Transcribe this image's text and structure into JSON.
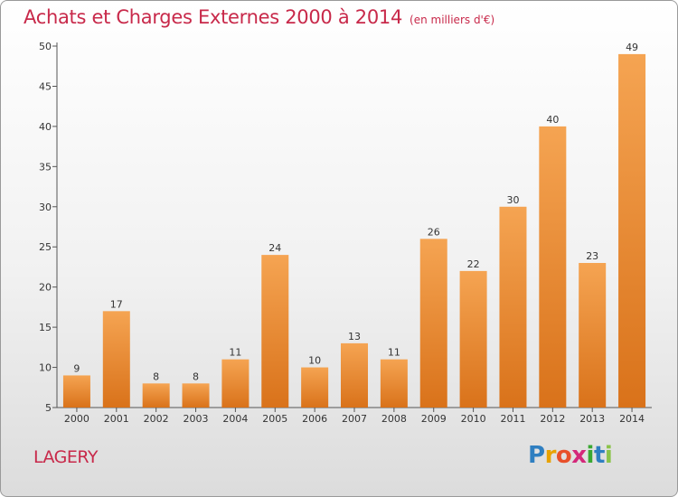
{
  "header": {
    "title": "Achats et Charges Externes 2000 à 2014",
    "unit": "(en milliers d'€)"
  },
  "footer": {
    "place": "LAGERY",
    "logo_letters": [
      "P",
      "r",
      "o",
      "x",
      "i",
      "t",
      "i"
    ],
    "logo_colors": [
      "#2f7fc1",
      "#e8a200",
      "#e8502a",
      "#d4287a",
      "#3aa832",
      "#2f7fc1",
      "#8bc34a"
    ]
  },
  "colors": {
    "title": "#c8294a",
    "bar_top": "#f5a452",
    "bar_bottom": "#d9721a",
    "axis": "#555555"
  },
  "chart_data": {
    "type": "bar",
    "title": "Achats et Charges Externes 2000 à 2014",
    "categories": [
      "2000",
      "2001",
      "2002",
      "2003",
      "2004",
      "2005",
      "2006",
      "2007",
      "2008",
      "2009",
      "2010",
      "2011",
      "2012",
      "2013",
      "2014"
    ],
    "values": [
      9,
      17,
      8,
      8,
      11,
      24,
      10,
      13,
      11,
      26,
      22,
      30,
      40,
      23,
      49
    ],
    "ylim": [
      5,
      50
    ],
    "yticks": [
      5,
      10,
      15,
      20,
      25,
      30,
      35,
      40,
      45,
      50
    ],
    "grid": false,
    "xlabel": "",
    "ylabel": ""
  }
}
